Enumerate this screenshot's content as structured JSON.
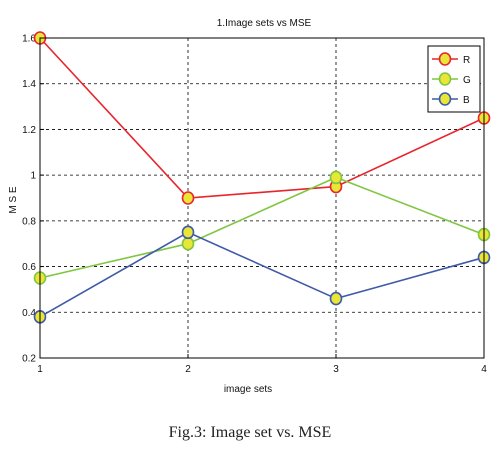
{
  "caption": "Fig.3: Image set vs. MSE",
  "chart_data": {
    "type": "line",
    "title": "1.Image sets vs MSE",
    "xlabel": "image sets",
    "ylabel": "M S E",
    "x": [
      1,
      2,
      3,
      4
    ],
    "xticks": [
      "1",
      "2",
      "3",
      "4"
    ],
    "yticks": [
      "0.2",
      "0.4",
      "0.6",
      "0.8",
      "1",
      "1.2",
      "1.4",
      "1.6"
    ],
    "xlim": [
      1,
      4
    ],
    "ylim": [
      0.2,
      1.6
    ],
    "grid": true,
    "legend_position": "top-right",
    "series": [
      {
        "name": "R",
        "color": "#e8242c",
        "values": [
          1.6,
          0.9,
          0.95,
          1.25
        ]
      },
      {
        "name": "G",
        "color": "#7ec63f",
        "values": [
          0.55,
          0.7,
          0.99,
          0.74
        ]
      },
      {
        "name": "B",
        "color": "#3f5aa8",
        "values": [
          0.38,
          0.75,
          0.46,
          0.64
        ]
      }
    ],
    "marker_fill": "#e9e638"
  }
}
